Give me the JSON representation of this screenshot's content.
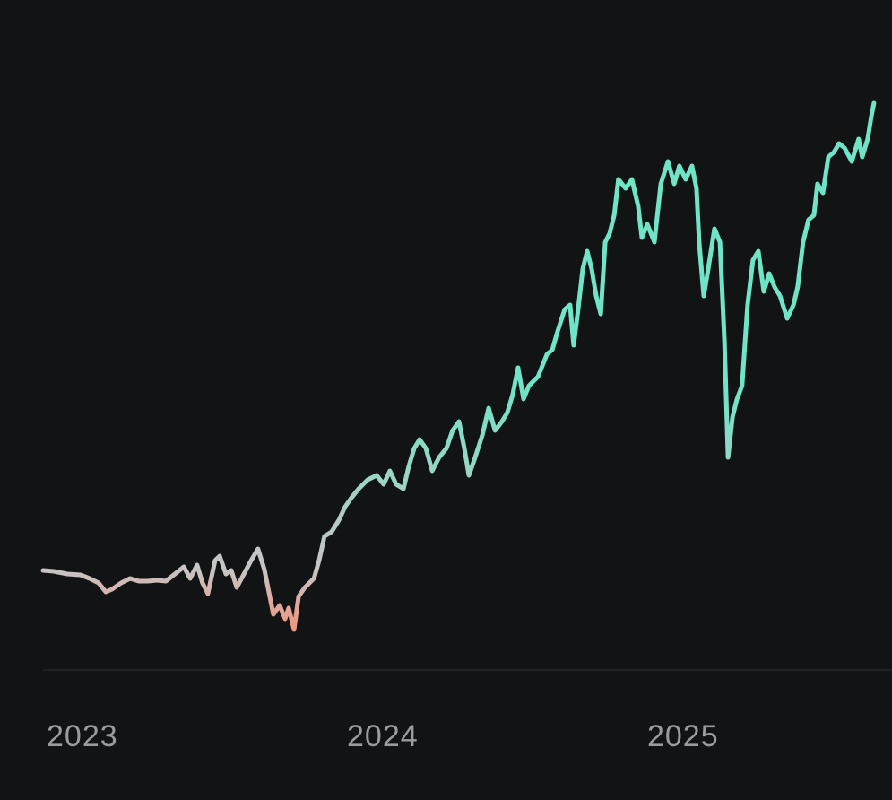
{
  "chart_data": {
    "type": "line",
    "x": [
      2022.988,
      2023.024,
      2023.069,
      2023.113,
      2023.143,
      2023.173,
      2023.197,
      2023.218,
      2023.248,
      2023.278,
      2023.307,
      2023.337,
      2023.367,
      2023.397,
      2023.427,
      2023.457,
      2023.478,
      2023.501,
      2023.519,
      2023.537,
      2023.561,
      2023.576,
      2023.597,
      2023.615,
      2023.633,
      2023.657,
      2023.681,
      2023.704,
      2023.725,
      2023.74,
      2023.755,
      2023.776,
      2023.794,
      2023.806,
      2023.824,
      2023.839,
      2023.86,
      2023.89,
      2023.907,
      2023.925,
      2023.949,
      2023.973,
      2023.994,
      2024.015,
      2024.039,
      2024.069,
      2024.099,
      2024.122,
      2024.143,
      2024.164,
      2024.188,
      2024.206,
      2024.224,
      2024.242,
      2024.263,
      2024.284,
      2024.307,
      2024.331,
      2024.352,
      2024.373,
      2024.391,
      2024.406,
      2024.427,
      2024.451,
      2024.472,
      2024.493,
      2024.516,
      2024.534,
      2024.552,
      2024.57,
      2024.588,
      2024.606,
      2024.636,
      2024.666,
      2024.684,
      2024.701,
      2024.725,
      2024.743,
      2024.755,
      2024.77,
      2024.785,
      2024.8,
      2024.815,
      2024.83,
      2024.845,
      2024.86,
      2024.875,
      2024.89,
      2024.904,
      2024.928,
      2024.949,
      2024.97,
      2024.982,
      2025.0,
      2025.024,
      2025.045,
      2025.069,
      2025.09,
      2025.107,
      2025.128,
      2025.149,
      2025.164,
      2025.173,
      2025.188,
      2025.203,
      2025.224,
      2025.242,
      2025.257,
      2025.269,
      2025.284,
      2025.299,
      2025.316,
      2025.334,
      2025.352,
      2025.37,
      2025.388,
      2025.406,
      2025.424,
      2025.442,
      2025.466,
      2025.487,
      2025.501,
      2025.519,
      2025.537,
      2025.555,
      2025.567,
      2025.585,
      2025.603,
      2025.621,
      2025.639,
      2025.657,
      2025.681,
      2025.704,
      2025.716,
      2025.734,
      2025.746,
      2025.755
    ],
    "values": [
      111,
      110,
      107,
      106,
      102,
      97,
      87,
      90,
      97,
      102,
      99,
      99,
      100,
      99,
      107,
      115,
      102,
      117,
      97,
      85,
      122,
      127,
      107,
      111,
      92,
      107,
      122,
      135,
      112,
      87,
      62,
      72,
      57,
      69,
      45,
      82,
      92,
      102,
      122,
      149,
      154,
      167,
      182,
      192,
      202,
      212,
      217,
      207,
      222,
      207,
      202,
      227,
      247,
      257,
      247,
      222,
      237,
      247,
      267,
      277,
      247,
      217,
      237,
      262,
      292,
      267,
      277,
      287,
      307,
      337,
      302,
      317,
      327,
      352,
      357,
      377,
      402,
      407,
      362,
      402,
      447,
      467,
      447,
      417,
      397,
      477,
      487,
      507,
      547,
      537,
      547,
      517,
      482,
      497,
      477,
      542,
      567,
      542,
      562,
      547,
      562,
      537,
      477,
      417,
      447,
      492,
      477,
      367,
      237,
      282,
      302,
      317,
      407,
      457,
      467,
      422,
      442,
      427,
      417,
      392,
      407,
      427,
      477,
      502,
      507,
      542,
      532,
      572,
      577,
      587,
      582,
      567,
      592,
      572,
      592,
      617,
      632
    ],
    "xlim": [
      2022.988,
      2025.815
    ],
    "ylim": [
      0,
      660
    ],
    "xticks": [
      2023,
      2024,
      2025
    ],
    "color": "#6fe4c7",
    "start_color": "#c8c4c4",
    "low_color": "#f0957d"
  }
}
